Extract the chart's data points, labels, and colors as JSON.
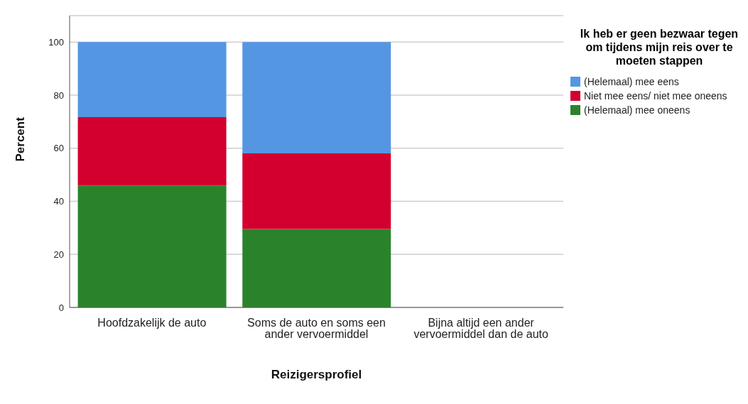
{
  "chart_data": {
    "type": "bar",
    "stacked": true,
    "xlabel": "Reizigersprofiel",
    "ylabel": "Percent",
    "legend_title": "Ik heb er geen bezwaar tegen om tijdens mijn reis over te moeten stappen",
    "categories": [
      "Hoofdzakelijk de auto",
      "Soms de auto en soms een ander vervoermiddel",
      "Bijna altijd een ander vervoermiddel dan de auto"
    ],
    "series": [
      {
        "name": "(Helemaal) mee oneens",
        "color": "#2a832a",
        "values": [
          46,
          29.6,
          null
        ]
      },
      {
        "name": "Niet mee eens/ niet mee oneens",
        "color": "#d3002f",
        "values": [
          25.7,
          28.5,
          null
        ]
      },
      {
        "name": "(Helemaal) mee eens",
        "color": "#5596e3",
        "values": [
          28.3,
          41.9,
          null
        ]
      }
    ],
    "ylim": [
      0,
      110
    ],
    "yticks": [
      0,
      20,
      40,
      60,
      80,
      100
    ],
    "grid": "y",
    "legend": "top right"
  }
}
